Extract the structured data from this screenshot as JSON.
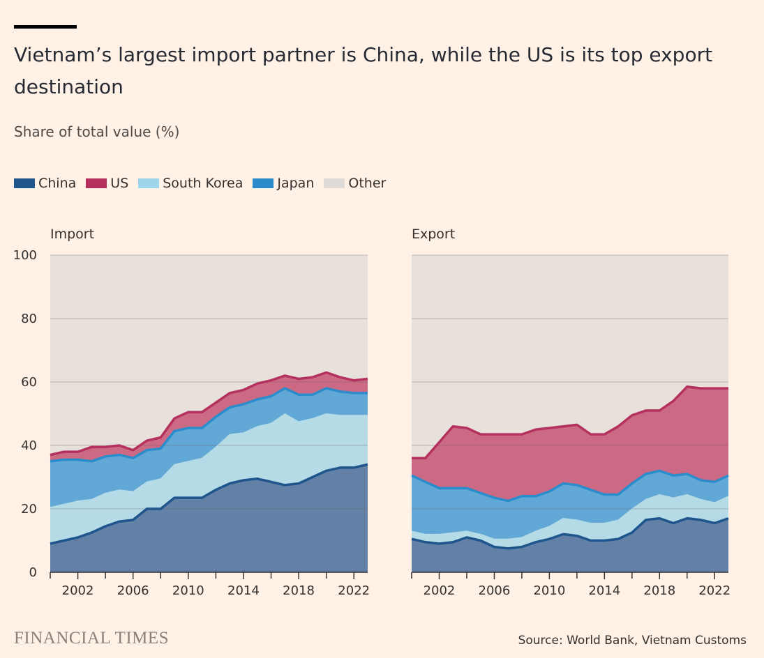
{
  "header": {
    "title": "Vietnam’s largest import partner is China, while the US is its top export destination",
    "subtitle": "Share of total value (%)"
  },
  "legend": [
    {
      "label": "China",
      "color": "#1e558c"
    },
    {
      "label": "US",
      "color": "#b3305f"
    },
    {
      "label": "South Korea",
      "color": "#9dd6ea"
    },
    {
      "label": "Japan",
      "color": "#2b8ccc"
    },
    {
      "label": "Other",
      "color": "#e0dbd6"
    }
  ],
  "footer": {
    "logo": "FINANCIAL TIMES",
    "source": "Source: World Bank, Vietnam Customs"
  },
  "chart_data": [
    {
      "type": "area",
      "stacked": true,
      "title": "Import",
      "x": [
        2000,
        2001,
        2002,
        2003,
        2004,
        2005,
        2006,
        2007,
        2008,
        2009,
        2010,
        2011,
        2012,
        2013,
        2014,
        2015,
        2016,
        2017,
        2018,
        2019,
        2020,
        2021,
        2022,
        2023
      ],
      "ylim": [
        0,
        100
      ],
      "yticks": [
        0,
        20,
        40,
        60,
        80,
        100
      ],
      "xticks": [
        2002,
        2006,
        2010,
        2014,
        2018,
        2022
      ],
      "grid": true,
      "series": [
        {
          "name": "China",
          "color": "#1e558c",
          "values": [
            9,
            10,
            11,
            12.5,
            14.5,
            16,
            16.5,
            20,
            20,
            23.5,
            23.5,
            23.5,
            26,
            28,
            29,
            29.5,
            28.5,
            27.5,
            28,
            30,
            32,
            33,
            33,
            34
          ]
        },
        {
          "name": "South Korea",
          "color": "#9dd6ea",
          "values": [
            11.5,
            11.5,
            11.5,
            10.5,
            10.5,
            10,
            9,
            8.5,
            9.5,
            10.5,
            11.5,
            12.5,
            13.5,
            15.5,
            15,
            16.5,
            18.5,
            22.5,
            19.5,
            18.5,
            18,
            16.5,
            16.5,
            15.5
          ]
        },
        {
          "name": "Japan",
          "color": "#2b8ccc",
          "values": [
            14.5,
            14,
            13,
            12,
            11.5,
            11,
            10.5,
            10,
            9.5,
            10.5,
            10.5,
            9.5,
            9.5,
            8.5,
            9,
            8.5,
            8.5,
            8,
            8.5,
            7.5,
            8,
            7.5,
            7,
            7
          ]
        },
        {
          "name": "US",
          "color": "#b3305f",
          "values": [
            2,
            2.5,
            2.5,
            4.5,
            3,
            3,
            2.5,
            3,
            3.5,
            4,
            5,
            5,
            4.5,
            4.5,
            4.5,
            5,
            5,
            4,
            5,
            5.5,
            5,
            4.5,
            4,
            4.5
          ]
        }
      ]
    },
    {
      "type": "area",
      "stacked": true,
      "title": "Export",
      "x": [
        2000,
        2001,
        2002,
        2003,
        2004,
        2005,
        2006,
        2007,
        2008,
        2009,
        2010,
        2011,
        2012,
        2013,
        2014,
        2015,
        2016,
        2017,
        2018,
        2019,
        2020,
        2021,
        2022,
        2023
      ],
      "ylim": [
        0,
        100
      ],
      "yticks": [
        0,
        20,
        40,
        60,
        80,
        100
      ],
      "xticks": [
        2002,
        2006,
        2010,
        2014,
        2018,
        2022
      ],
      "grid": true,
      "series": [
        {
          "name": "China",
          "color": "#1e558c",
          "values": [
            10.5,
            9.5,
            9,
            9.5,
            11,
            10,
            8,
            7.5,
            8,
            9.5,
            10.5,
            12,
            11.5,
            10,
            10,
            10.5,
            12.5,
            16.5,
            17,
            15.5,
            17,
            16.5,
            15.5,
            17
          ]
        },
        {
          "name": "South Korea",
          "color": "#9dd6ea",
          "values": [
            2.5,
            2.5,
            3,
            3,
            2,
            2,
            2.5,
            3,
            3,
            3.5,
            4,
            5,
            5,
            5.5,
            5.5,
            6,
            7.5,
            6.5,
            7.5,
            8,
            7.5,
            6.5,
            6.5,
            7
          ]
        },
        {
          "name": "Japan",
          "color": "#2b8ccc",
          "values": [
            17.5,
            16.5,
            14.5,
            14,
            13.5,
            13,
            13,
            12,
            13,
            11,
            11,
            11,
            11,
            10.5,
            9,
            8,
            8,
            8,
            7.5,
            7,
            6.5,
            6,
            6.5,
            6.5
          ]
        },
        {
          "name": "US",
          "color": "#b3305f",
          "values": [
            5.5,
            7.5,
            14.5,
            19.5,
            19,
            18.5,
            20,
            21,
            19.5,
            21,
            20,
            18,
            19,
            17.5,
            19,
            21.5,
            21.5,
            20,
            19,
            23.5,
            27.5,
            29,
            29.5,
            27.5
          ]
        }
      ]
    }
  ]
}
